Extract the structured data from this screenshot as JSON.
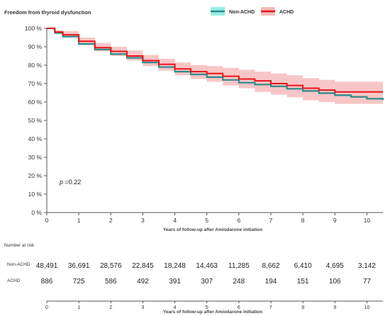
{
  "chart_data": {
    "type": "line",
    "ylabel": "Freedom from thyroid dysfunction",
    "xlabel": "Years of follow-up after Amiodarone initiation",
    "xlim": [
      0,
      10.5
    ],
    "ylim": [
      0,
      100
    ],
    "x_ticks": [
      "0",
      "1",
      "2",
      "3",
      "4",
      "5",
      "6",
      "7",
      "8",
      "9",
      "10"
    ],
    "y_ticks": [
      "0 %",
      "10 %",
      "20 %",
      "30 %",
      "40 %",
      "50 %",
      "60 %",
      "70 %",
      "80 %",
      "90 %",
      "100 %"
    ],
    "grid": false,
    "legend_position": "top-right",
    "annotation": {
      "p_symbol": "p",
      "p_text": " =0.22"
    },
    "series": [
      {
        "name": "Non-ACHD",
        "color": "#2e8b8b",
        "band_color": "#40e0d0",
        "x": [
          0,
          0.25,
          0.5,
          1,
          1.5,
          2,
          2.5,
          3,
          3.5,
          4,
          4.5,
          5,
          5.5,
          6,
          6.5,
          7,
          7.5,
          8,
          8.5,
          9,
          9.5,
          10,
          10.5
        ],
        "y": [
          100,
          97.5,
          95.5,
          91.5,
          88.5,
          86,
          84,
          81.5,
          79,
          76.5,
          75,
          73.5,
          72,
          70.5,
          69.5,
          68.5,
          67.2,
          66,
          64.8,
          63.7,
          62.8,
          61.8,
          61
        ],
        "lower": [
          100,
          97.3,
          95.3,
          91.3,
          88.3,
          85.8,
          83.8,
          81.3,
          78.8,
          76.2,
          74.7,
          73.2,
          71.7,
          70.2,
          69.1,
          68.1,
          66.8,
          65.5,
          64.3,
          63.2,
          62.2,
          61.2,
          60.4
        ],
        "upper": [
          100,
          97.7,
          95.7,
          91.7,
          88.7,
          86.2,
          84.2,
          81.7,
          79.2,
          76.8,
          75.3,
          73.8,
          72.3,
          70.8,
          69.9,
          68.9,
          67.6,
          66.5,
          65.3,
          64.2,
          63.4,
          62.4,
          61.6
        ]
      },
      {
        "name": "ACHD",
        "color": "#e8141a",
        "band_color": "#f4a0a0",
        "x": [
          0,
          0.25,
          0.5,
          1,
          1.5,
          2,
          2.5,
          3,
          3.5,
          4,
          4.5,
          5,
          5.5,
          6,
          6.5,
          7,
          7.5,
          8,
          8.5,
          9,
          9.5,
          10,
          10.5
        ],
        "y": [
          100,
          98,
          96.5,
          93,
          89.5,
          87.5,
          85,
          82.5,
          80.5,
          78,
          76.5,
          75.5,
          74,
          72.5,
          71.5,
          70,
          69,
          67.5,
          66.5,
          65.5,
          65.5,
          65.5,
          65.5
        ],
        "lower": [
          100,
          97,
          95,
          91,
          87.5,
          85,
          82.5,
          79.5,
          77,
          74.5,
          72.5,
          71,
          69,
          67.5,
          65.5,
          64,
          62.5,
          61,
          60,
          59,
          59,
          59,
          59
        ],
        "upper": [
          100,
          99,
          98.5,
          95,
          92,
          90,
          88,
          85.5,
          83.5,
          81.5,
          80,
          79.5,
          78.5,
          77.5,
          76.5,
          75.5,
          74.5,
          73,
          72,
          71,
          71,
          71,
          71
        ]
      }
    ]
  },
  "risk_table": {
    "title": "Number at risk",
    "xlabel": "Years of follow-up after Amiodarone initiation",
    "x_ticks": [
      "0",
      "1",
      "2",
      "3",
      "4",
      "5",
      "6",
      "7",
      "8",
      "9",
      "10"
    ],
    "rows": [
      {
        "label": "Non-ACHD",
        "values": [
          "48,491",
          "36,691",
          "28,576",
          "22,845",
          "18,248",
          "14,463",
          "11,285",
          "8,662",
          "6,410",
          "4,695",
          "3,142"
        ]
      },
      {
        "label": "ACHD",
        "values": [
          "886",
          "725",
          "586",
          "492",
          "391",
          "307",
          "248",
          "194",
          "151",
          "106",
          "77"
        ]
      }
    ]
  }
}
